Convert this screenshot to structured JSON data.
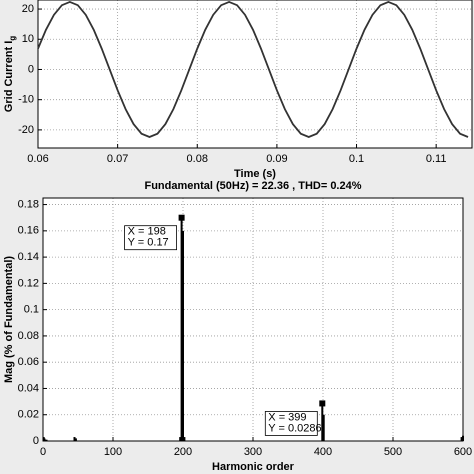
{
  "chart_data": [
    {
      "type": "line",
      "xlabel": "Time (s)",
      "ylabel": "Grid Current I",
      "ylabel_subscript": "g",
      "x": [
        0.06,
        0.061,
        0.062,
        0.063,
        0.064,
        0.065,
        0.066,
        0.067,
        0.068,
        0.069,
        0.07,
        0.071,
        0.072,
        0.073,
        0.074,
        0.075,
        0.076,
        0.077,
        0.078,
        0.079,
        0.08,
        0.081,
        0.082,
        0.083,
        0.084,
        0.085,
        0.086,
        0.087,
        0.088,
        0.089,
        0.09,
        0.091,
        0.092,
        0.093,
        0.094,
        0.095,
        0.096,
        0.097,
        0.098,
        0.099,
        0.1,
        0.101,
        0.102,
        0.103,
        0.104,
        0.105,
        0.106,
        0.107,
        0.108,
        0.109,
        0.11,
        0.111,
        0.112,
        0.113,
        0.114
      ],
      "series": [
        {
          "color": "#333333",
          "values": [
            6.91,
            13.14,
            18.09,
            21.27,
            22.36,
            21.27,
            18.09,
            13.14,
            6.91,
            0,
            -6.91,
            -13.14,
            -18.09,
            -21.27,
            -22.36,
            -21.27,
            -18.09,
            -13.14,
            -6.91,
            0,
            6.91,
            13.14,
            18.09,
            21.27,
            22.36,
            21.27,
            18.09,
            13.14,
            6.91,
            0,
            -6.91,
            -13.14,
            -18.09,
            -21.27,
            -22.36,
            -21.27,
            -18.09,
            -13.14,
            -6.91,
            0,
            6.91,
            13.14,
            18.09,
            21.27,
            22.36,
            21.27,
            18.09,
            13.14,
            6.91,
            0,
            -6.91,
            -13.14,
            -18.09,
            -21.27,
            -22.36
          ]
        }
      ],
      "xlim": [
        0.06,
        0.1145
      ],
      "xticks": [
        0.06,
        0.07,
        0.08,
        0.09,
        0.1,
        0.11
      ],
      "ylim": [
        -26,
        23
      ],
      "yticks": [
        -20,
        -10,
        0,
        10,
        20
      ],
      "grid": true
    },
    {
      "type": "bar",
      "title": "Fundamental (50Hz) = 22.36 , THD= 0.24%",
      "xlabel": "Harmonic order",
      "ylabel": "Mag (% of Fundamental)",
      "x": [
        1,
        2,
        3,
        5,
        45,
        47,
        196,
        198,
        200,
        202,
        399,
        401,
        598,
        600
      ],
      "values": [
        0.003,
        0.002,
        0.001,
        0.001,
        0.003,
        0.002,
        0.003,
        0.17,
        0.16,
        0.003,
        0.0286,
        0.02,
        0.003,
        0.004
      ],
      "color": "#000000",
      "xlim": [
        0,
        600
      ],
      "xticks": [
        0,
        100,
        200,
        300,
        400,
        500,
        600
      ],
      "ylim": [
        0,
        0.185
      ],
      "yticks": [
        0,
        0.02,
        0.04,
        0.06,
        0.08,
        0.1,
        0.12,
        0.14,
        0.16,
        0.18
      ],
      "grid": true,
      "annotations": [
        {
          "point": 7,
          "lines": [
            "X = 198",
            "Y = 0.17"
          ]
        },
        {
          "point": 10,
          "lines": [
            "X = 399",
            "Y = 0.0286"
          ]
        }
      ]
    }
  ]
}
